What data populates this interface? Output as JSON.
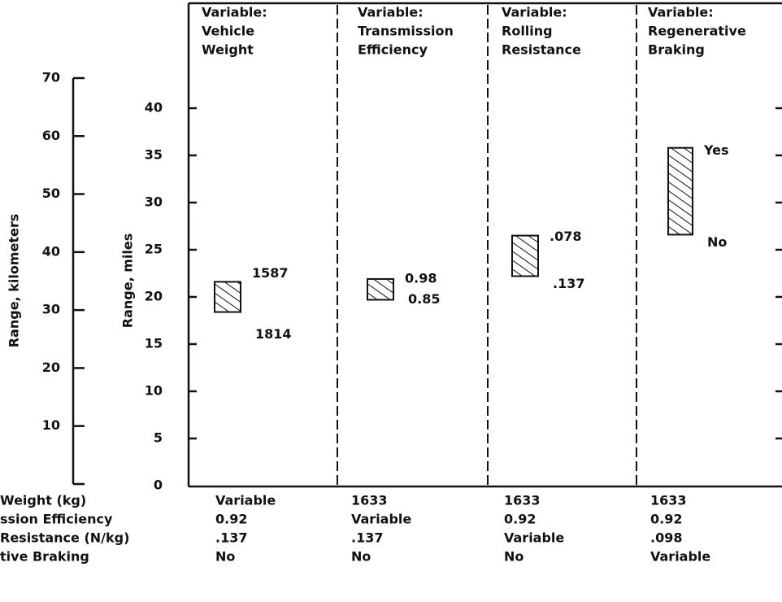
{
  "chart_data": {
    "type": "range_bar",
    "y2_label": "Range, kilometers",
    "y_label": "Range, miles",
    "ylim": [
      0,
      40
    ],
    "yticks": [
      0,
      5,
      10,
      15,
      20,
      25,
      30,
      35,
      40
    ],
    "y2lim": [
      0,
      70
    ],
    "y2ticks": [
      10,
      20,
      30,
      40,
      50,
      60,
      70
    ],
    "panels": [
      {
        "title": [
          "Variable:",
          "Vehicle",
          "Weight"
        ],
        "low": 18.4,
        "high": 21.6,
        "high_label": "1587",
        "low_label": "1814"
      },
      {
        "title": [
          "Variable:",
          "Transmission",
          "Efficiency"
        ],
        "low": 19.7,
        "high": 21.9,
        "high_label": "0.98",
        "low_label": "0.85"
      },
      {
        "title": [
          "Variable:",
          "Rolling",
          "Resistance"
        ],
        "low": 22.2,
        "high": 26.5,
        "high_label": ".078",
        "low_label": ".137"
      },
      {
        "title": [
          "Variable:",
          "Regenerative",
          "Braking"
        ],
        "low": 26.6,
        "high": 35.8,
        "high_label": "Yes",
        "low_label": "No"
      }
    ],
    "table": {
      "row_labels": [
        "Weight (kg)",
        "ssion Efficiency",
        "Resistance (N/kg)",
        "tive Braking"
      ],
      "rows": [
        [
          "Variable",
          "1633",
          "1633",
          "1633"
        ],
        [
          "0.92",
          "Variable",
          "0.92",
          "0.92"
        ],
        [
          ".137",
          ".137",
          "Variable",
          ".098"
        ],
        [
          "No",
          "No",
          "No",
          "Variable"
        ]
      ]
    }
  }
}
